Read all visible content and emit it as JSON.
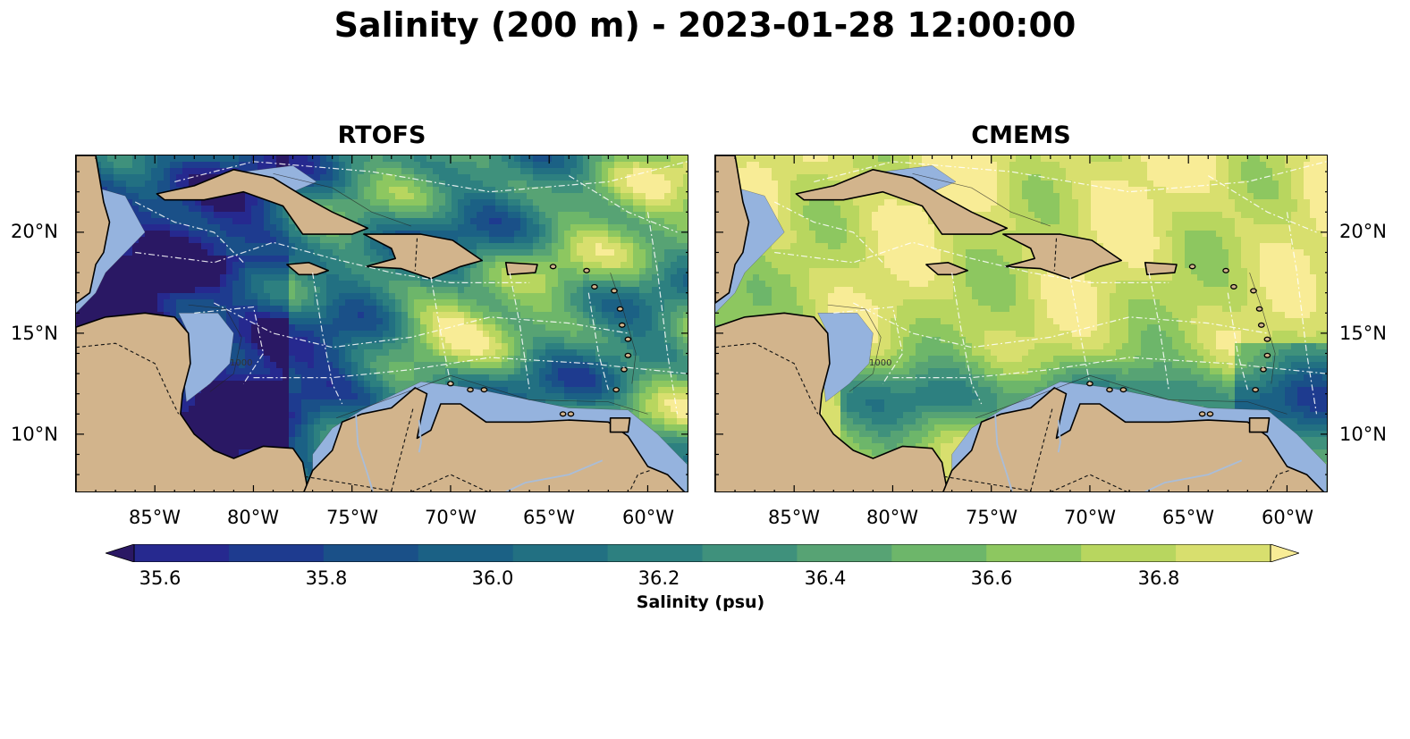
{
  "title": "Salinity (200 m) - 2023-01-28 12:00:00",
  "panels": [
    {
      "name": "RTOFS",
      "fill_bias": 0
    },
    {
      "name": "CMEMS",
      "fill_bias": 8
    }
  ],
  "lon_ticks": [
    "85°W",
    "80°W",
    "75°W",
    "70°W",
    "65°W",
    "60°W"
  ],
  "lat_ticks": [
    "20°N",
    "15°N",
    "10°N"
  ],
  "colorbar": {
    "label": "Salinity (psu)",
    "ticks": [
      "35.6",
      "35.8",
      "36.0",
      "36.2",
      "36.4",
      "36.6",
      "36.8"
    ],
    "levels": [
      35.6,
      35.7,
      35.8,
      35.9,
      36.0,
      36.1,
      36.2,
      36.3,
      36.4,
      36.5,
      36.6,
      36.7,
      36.8,
      36.9
    ],
    "colors": [
      "#2a1864",
      "#26298f",
      "#1e3b8f",
      "#1a5088",
      "#1b6185",
      "#227082",
      "#2d8080",
      "#3f917c",
      "#57a374",
      "#6db66a",
      "#8dc760",
      "#b8d65f",
      "#d8df6e",
      "#f8ec96"
    ]
  },
  "colors": {
    "land": "#d2b48c",
    "shelf": "#95b3de"
  },
  "contour_label": "1000"
}
